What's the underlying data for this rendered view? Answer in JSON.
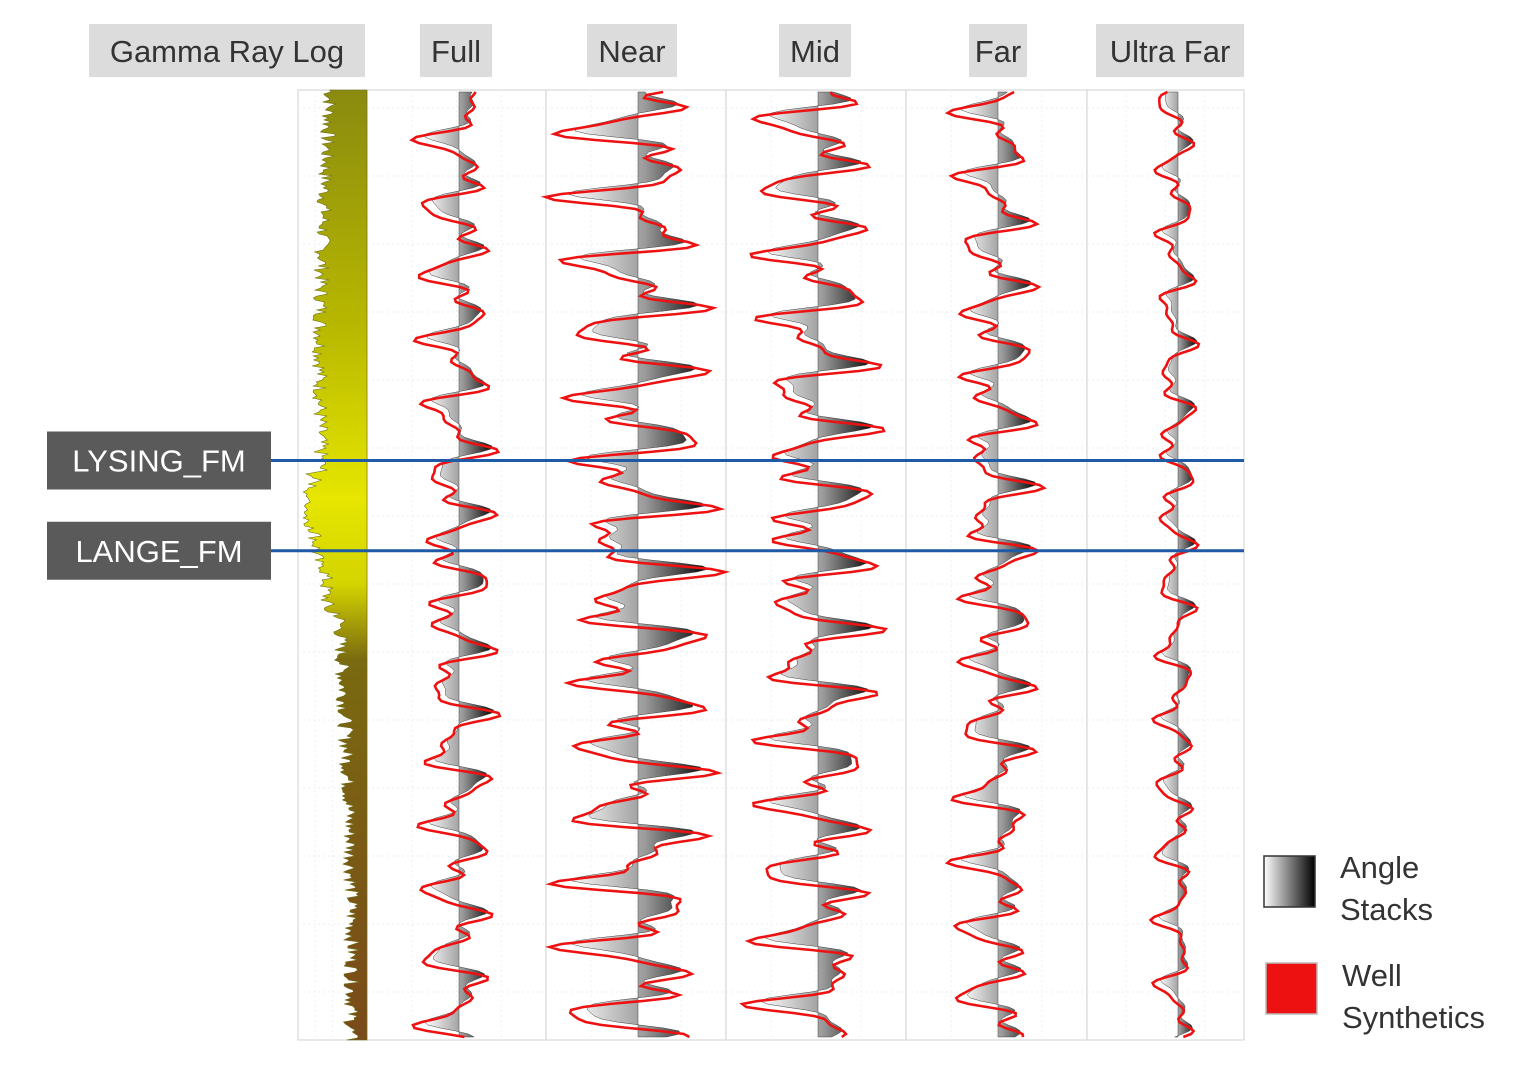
{
  "chart_data": {
    "type": "line",
    "title": "",
    "panels": [
      {
        "label": "Gamma Ray Log",
        "kind": "log"
      },
      {
        "label": "Full",
        "kind": "seismic"
      },
      {
        "label": "Near",
        "kind": "seismic"
      },
      {
        "label": "Mid",
        "kind": "seismic"
      },
      {
        "label": "Far",
        "kind": "seismic"
      },
      {
        "label": "Ultra Far",
        "kind": "seismic"
      }
    ],
    "formation_tops": [
      {
        "name": "LYSING_FM",
        "depth_fraction": 0.39
      },
      {
        "name": "LANGE_FM",
        "depth_fraction": 0.485
      }
    ],
    "legend": [
      {
        "label_line1": "Angle",
        "label_line2": "Stacks",
        "symbol": "gradient"
      },
      {
        "label_line1": "Well",
        "label_line2": "Synthetics",
        "color": "#ee1111"
      }
    ],
    "legend_position": "bottom-right",
    "colors": {
      "synthetic": "#ee1111",
      "formation_line": "#1f5aa6",
      "formation_label_bg": "#5a5a5a",
      "header_bg": "#dcdcdc",
      "gamma_high": "#e8e800",
      "gamma_low": "#7a5a1a"
    },
    "grid": true
  }
}
